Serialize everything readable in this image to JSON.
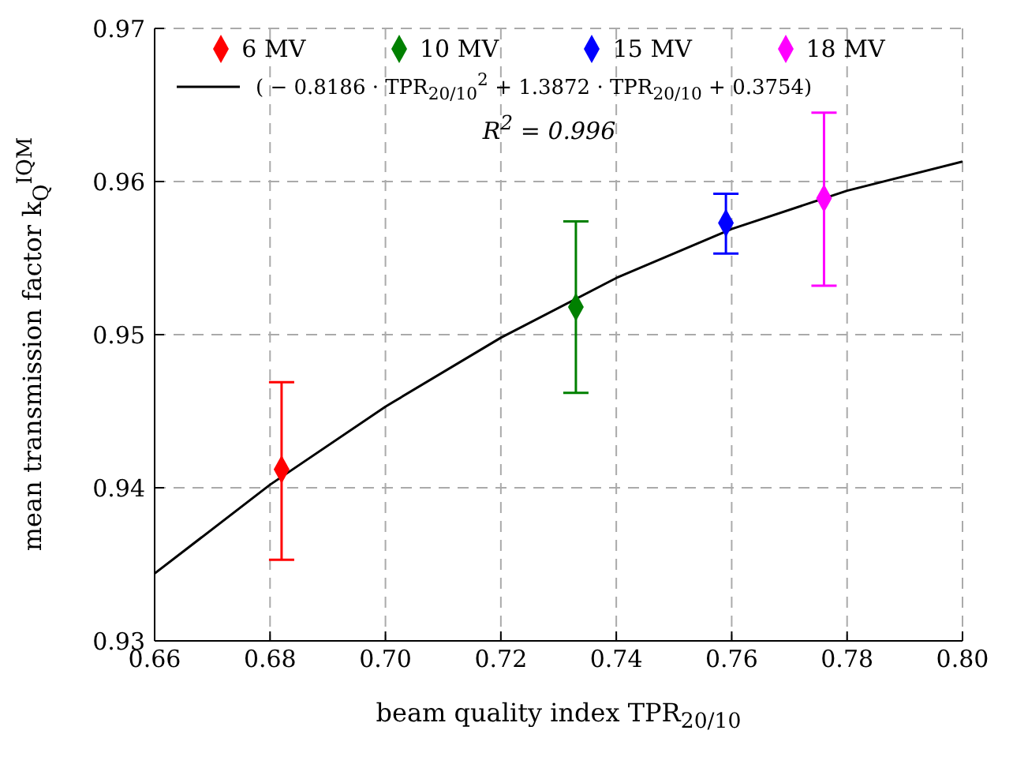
{
  "chart_data": {
    "type": "scatter",
    "xlabel": "beam quality index TPR$_{20/10}$",
    "ylabel": "mean transmission factor k$_{Q}$$^{IQM}$",
    "xlim": [
      0.66,
      0.8
    ],
    "xticks": [
      0.66,
      0.68,
      {
        "value": 0.7,
        "label": "0.70"
      },
      0.72,
      0.74,
      0.76,
      0.78,
      {
        "value": 0.8,
        "label": "0.80"
      }
    ],
    "ylim": [
      0.93,
      0.97
    ],
    "yticks": [
      0.93,
      0.94,
      0.95,
      0.96,
      0.97
    ],
    "grid": true,
    "legend": "top",
    "marker": "diamond",
    "annotations": [
      "R$^{2}$ = 0.996"
    ],
    "series": [
      {
        "name": "6 MV",
        "color": "#ff0000",
        "x": [
          0.682
        ],
        "values": [
          0.9412
        ],
        "errors": [
          [
            0.9353,
            0.9469
          ]
        ]
      },
      {
        "name": "10 MV",
        "color": "#008000",
        "x": [
          0.733
        ],
        "values": [
          0.9518
        ],
        "errors": [
          [
            0.9462,
            0.9574
          ]
        ]
      },
      {
        "name": "15 MV",
        "color": "#0000ff",
        "x": [
          0.759
        ],
        "values": [
          0.9573
        ],
        "errors": [
          [
            0.9553,
            0.9592
          ]
        ]
      },
      {
        "name": "18 MV",
        "color": "#ff00ff",
        "x": [
          0.776
        ],
        "values": [
          0.9589
        ],
        "errors": [
          [
            0.9532,
            0.9645
          ]
        ]
      },
      {
        "name": "( − 0.8186 · TPR$_{20/10}$$^{2}$ + 1.3872 · TPR$_{20/10}$ + 0.3754)",
        "type": "line",
        "marker": "none",
        "line_style": "solid",
        "color": "#000000",
        "x": [
          0.66,
          0.68,
          0.7,
          0.72,
          0.74,
          0.76,
          0.78,
          0.8
        ],
        "values": [
          0.9344,
          0.9402,
          0.9453,
          0.9498,
          0.9537,
          0.9569,
          0.9594,
          0.9613
        ]
      }
    ]
  }
}
